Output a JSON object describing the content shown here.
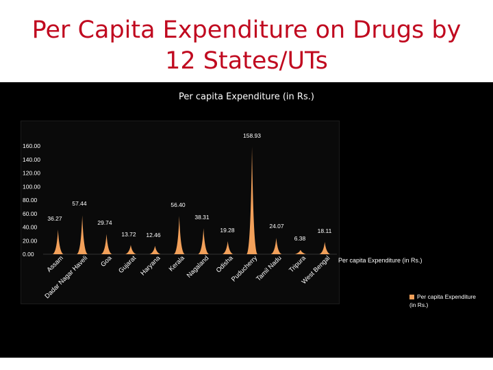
{
  "slide": {
    "title_line1": "Per Capita Expenditure on Drugs by",
    "title_line2": "12 States/UTs"
  },
  "colors": {
    "title": "#c0091f",
    "series": "#f2a05a",
    "background": "#000000",
    "text": "#ffffff"
  },
  "chart_data": {
    "type": "area",
    "title": "Per capita Expenditure (in Rs.)",
    "categories": [
      "Assam",
      "Dadar Nagar Haveli",
      "Goa",
      "Gujarat",
      "Haryana",
      "Kerala",
      "Nagaland",
      "Odisha",
      "Puducherry",
      "Tamil Nadu",
      "Tripura",
      "West Bengal"
    ],
    "series": [
      {
        "name": "Per capita Expenditure (in Rs.)",
        "values": [
          36.27,
          57.44,
          29.74,
          13.72,
          12.46,
          56.4,
          38.31,
          19.28,
          158.93,
          24.07,
          6.38,
          18.11
        ]
      }
    ],
    "data_labels": [
      "36.27",
      "57.44",
      "29.74",
      "13.72",
      "12.46",
      "56.40",
      "38.31",
      "19.28",
      "158.93",
      "24.07",
      "6.38",
      "18.11"
    ],
    "ylim": [
      0,
      160
    ],
    "yticks": [
      "0.00",
      "20.00",
      "40.00",
      "60.00",
      "80.00",
      "100.00",
      "120.00",
      "140.00",
      "160.00"
    ],
    "grid": false,
    "legend": "right"
  },
  "legend": {
    "axis_label": "Per capita Expenditure (in Rs.)",
    "box_label": "Per capita Expenditure (in Rs.)"
  }
}
